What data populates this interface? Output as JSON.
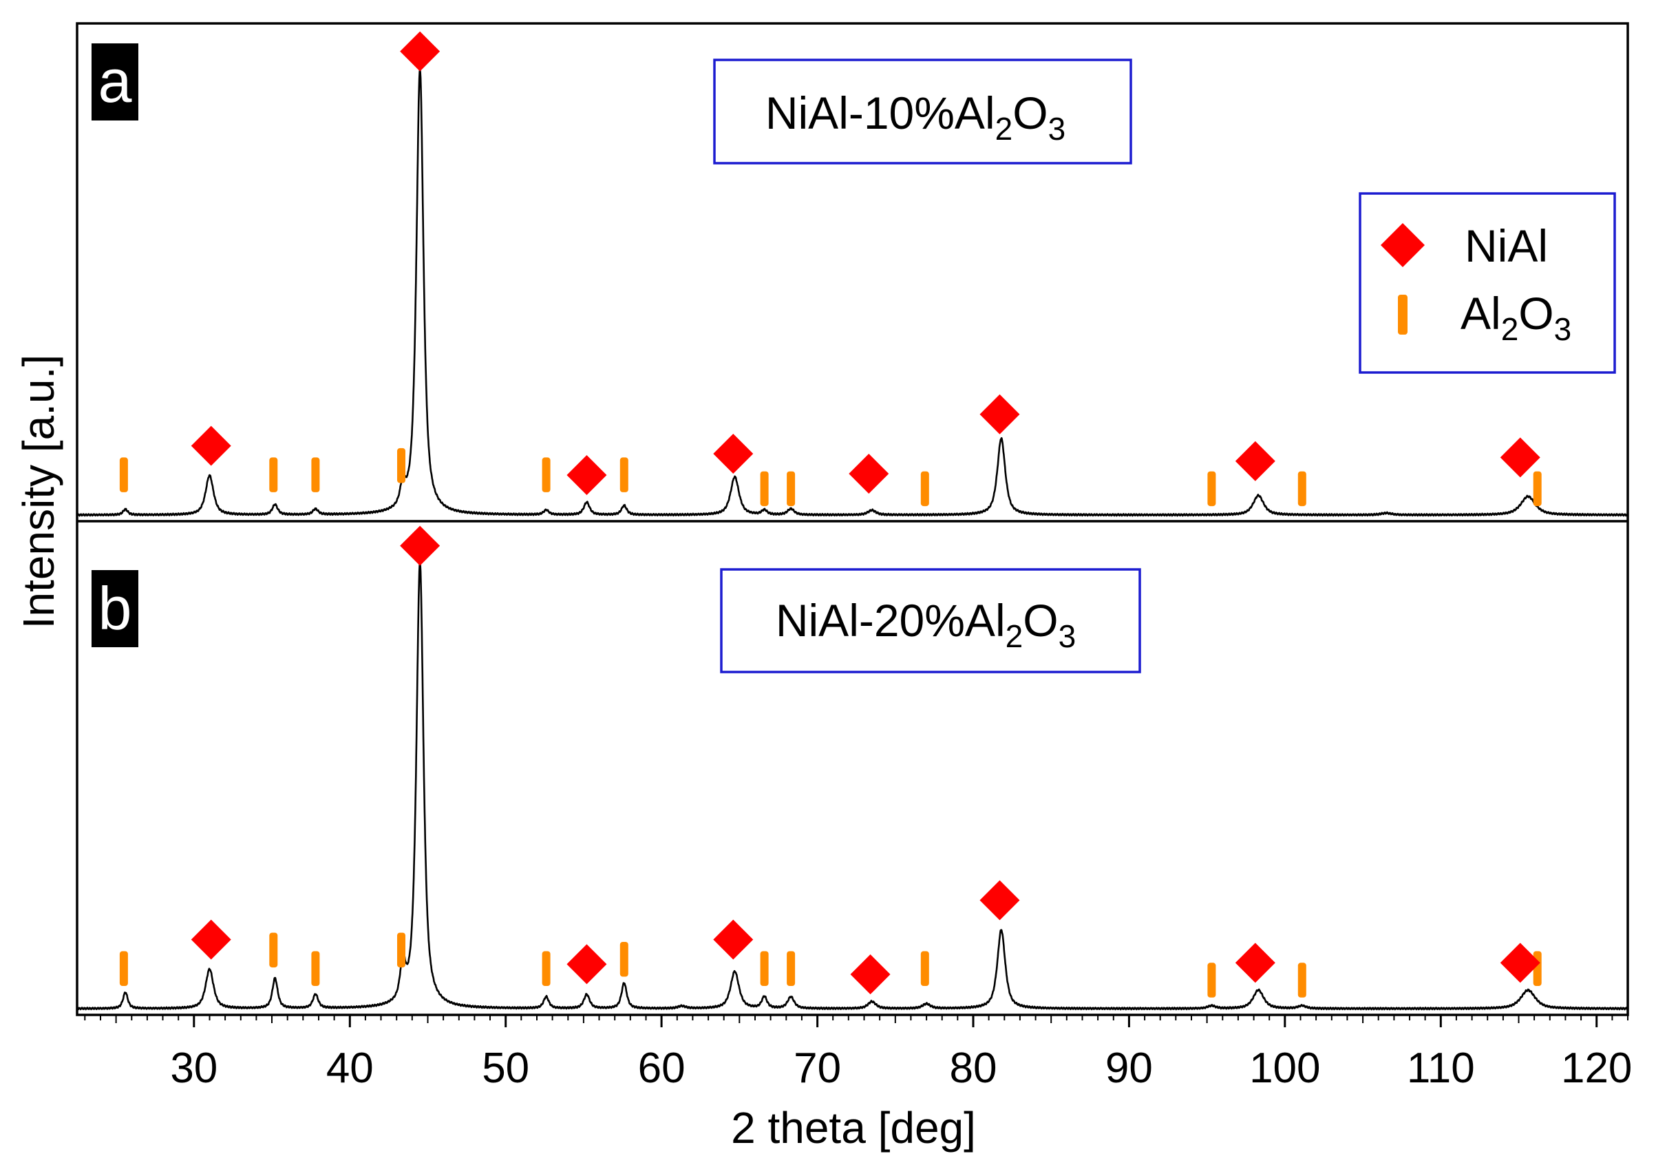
{
  "chart_data": {
    "type": "line",
    "xlabel": "2 theta [deg]",
    "ylabel": "Intensity [a.u.]",
    "xlim": [
      22.5,
      122
    ],
    "x_ticks": [
      30,
      40,
      50,
      60,
      70,
      80,
      90,
      100,
      110,
      120
    ],
    "x_tick_labels": [
      "30",
      "40",
      "50",
      "60",
      "70",
      "80",
      "90",
      "100",
      "110",
      "120"
    ],
    "legend": {
      "position": "top-right",
      "entries": [
        {
          "label": "NiAl",
          "marker": "diamond",
          "color": "#ff0000"
        },
        {
          "label": "Al",
          "sub1": "2",
          "label2": "O",
          "sub2": "3",
          "marker": "bar",
          "color": "#ff8c00"
        }
      ]
    },
    "panels": [
      {
        "letter": "a",
        "title": {
          "main": "NiAl-10%Al",
          "sub1": "2",
          "mid": "O",
          "sub2": "3"
        },
        "ylim": [
          0,
          100
        ],
        "peaks": [
          {
            "x": 25.6,
            "h": 1.2,
            "w": 0.18
          },
          {
            "x": 31.0,
            "h": 8.5,
            "w": 0.3
          },
          {
            "x": 35.2,
            "h": 2.2,
            "w": 0.2
          },
          {
            "x": 37.8,
            "h": 1.2,
            "w": 0.2
          },
          {
            "x": 43.4,
            "h": 4.5,
            "w": 0.2
          },
          {
            "x": 44.5,
            "h": 96,
            "w": 0.27
          },
          {
            "x": 52.6,
            "h": 1.0,
            "w": 0.2
          },
          {
            "x": 55.2,
            "h": 2.7,
            "w": 0.22
          },
          {
            "x": 57.6,
            "h": 2.0,
            "w": 0.2
          },
          {
            "x": 64.7,
            "h": 8.2,
            "w": 0.32
          },
          {
            "x": 66.6,
            "h": 1.0,
            "w": 0.2
          },
          {
            "x": 68.3,
            "h": 1.3,
            "w": 0.25
          },
          {
            "x": 73.5,
            "h": 1.0,
            "w": 0.3
          },
          {
            "x": 81.8,
            "h": 16.5,
            "w": 0.3
          },
          {
            "x": 98.3,
            "h": 4.2,
            "w": 0.4
          },
          {
            "x": 106.5,
            "h": 0.4,
            "w": 0.4
          },
          {
            "x": 115.6,
            "h": 4.0,
            "w": 0.55
          }
        ],
        "nial_markers": [
          {
            "x": 31.1,
            "y": 15.5
          },
          {
            "x": 44.5,
            "y": 100.5
          },
          {
            "x": 55.2,
            "y": 9.2
          },
          {
            "x": 64.6,
            "y": 13.8
          },
          {
            "x": 73.3,
            "y": 9.5
          },
          {
            "x": 81.7,
            "y": 22.3
          },
          {
            "x": 98.1,
            "y": 12.2
          },
          {
            "x": 115.1,
            "y": 13.0
          }
        ],
        "al2o3_markers": [
          {
            "x": 25.5,
            "y0": 5.5,
            "y1": 13.0
          },
          {
            "x": 35.1,
            "y0": 5.5,
            "y1": 13.0
          },
          {
            "x": 37.8,
            "y0": 5.5,
            "y1": 13.0
          },
          {
            "x": 43.3,
            "y0": 7.5,
            "y1": 15.0
          },
          {
            "x": 52.6,
            "y0": 5.5,
            "y1": 13.0
          },
          {
            "x": 57.6,
            "y0": 5.5,
            "y1": 13.0
          },
          {
            "x": 66.6,
            "y0": 2.5,
            "y1": 10.0
          },
          {
            "x": 68.3,
            "y0": 2.5,
            "y1": 10.0
          },
          {
            "x": 76.9,
            "y0": 2.5,
            "y1": 10.0
          },
          {
            "x": 95.3,
            "y0": 2.5,
            "y1": 10.0
          },
          {
            "x": 101.1,
            "y0": 2.5,
            "y1": 10.0
          },
          {
            "x": 116.2,
            "y0": 2.5,
            "y1": 10.0
          }
        ]
      },
      {
        "letter": "b",
        "title": {
          "main": "NiAl-20%Al",
          "sub1": "2",
          "mid": "O",
          "sub2": "3"
        },
        "ylim": [
          0,
          100
        ],
        "peaks": [
          {
            "x": 25.6,
            "h": 3.5,
            "w": 0.18
          },
          {
            "x": 31.0,
            "h": 8.5,
            "w": 0.3
          },
          {
            "x": 35.2,
            "h": 6.5,
            "w": 0.2
          },
          {
            "x": 37.8,
            "h": 3.0,
            "w": 0.2
          },
          {
            "x": 43.4,
            "h": 8.0,
            "w": 0.2
          },
          {
            "x": 44.5,
            "h": 96,
            "w": 0.27
          },
          {
            "x": 52.6,
            "h": 2.5,
            "w": 0.2
          },
          {
            "x": 55.2,
            "h": 3.0,
            "w": 0.22
          },
          {
            "x": 57.6,
            "h": 5.5,
            "w": 0.2
          },
          {
            "x": 61.3,
            "h": 0.5,
            "w": 0.3
          },
          {
            "x": 64.7,
            "h": 8.0,
            "w": 0.32
          },
          {
            "x": 66.6,
            "h": 2.5,
            "w": 0.2
          },
          {
            "x": 68.3,
            "h": 2.5,
            "w": 0.25
          },
          {
            "x": 73.5,
            "h": 1.5,
            "w": 0.3
          },
          {
            "x": 77.0,
            "h": 1.0,
            "w": 0.3
          },
          {
            "x": 81.8,
            "h": 17.0,
            "w": 0.3
          },
          {
            "x": 95.3,
            "h": 0.6,
            "w": 0.3
          },
          {
            "x": 98.3,
            "h": 4.0,
            "w": 0.4
          },
          {
            "x": 101.1,
            "h": 0.6,
            "w": 0.3
          },
          {
            "x": 115.6,
            "h": 4.0,
            "w": 0.55
          }
        ],
        "nial_markers": [
          {
            "x": 31.1,
            "y": 15.5
          },
          {
            "x": 44.5,
            "y": 100.5
          },
          {
            "x": 55.2,
            "y": 10.2
          },
          {
            "x": 64.6,
            "y": 15.5
          },
          {
            "x": 73.4,
            "y": 8.0
          },
          {
            "x": 81.7,
            "y": 24.0
          },
          {
            "x": 98.1,
            "y": 10.5
          },
          {
            "x": 115.1,
            "y": 10.5
          }
        ],
        "al2o3_markers": [
          {
            "x": 25.5,
            "y0": 5.5,
            "y1": 13.0
          },
          {
            "x": 35.1,
            "y0": 9.5,
            "y1": 17.0
          },
          {
            "x": 37.8,
            "y0": 5.5,
            "y1": 13.0
          },
          {
            "x": 43.3,
            "y0": 9.5,
            "y1": 17.0
          },
          {
            "x": 52.6,
            "y0": 5.5,
            "y1": 13.0
          },
          {
            "x": 57.6,
            "y0": 7.5,
            "y1": 15.0
          },
          {
            "x": 66.6,
            "y0": 5.5,
            "y1": 13.0
          },
          {
            "x": 68.3,
            "y0": 5.5,
            "y1": 13.0
          },
          {
            "x": 76.9,
            "y0": 5.5,
            "y1": 13.0
          },
          {
            "x": 95.3,
            "y0": 3.0,
            "y1": 10.5
          },
          {
            "x": 101.1,
            "y0": 3.0,
            "y1": 10.5
          },
          {
            "x": 116.2,
            "y0": 5.5,
            "y1": 13.0
          }
        ]
      }
    ]
  }
}
